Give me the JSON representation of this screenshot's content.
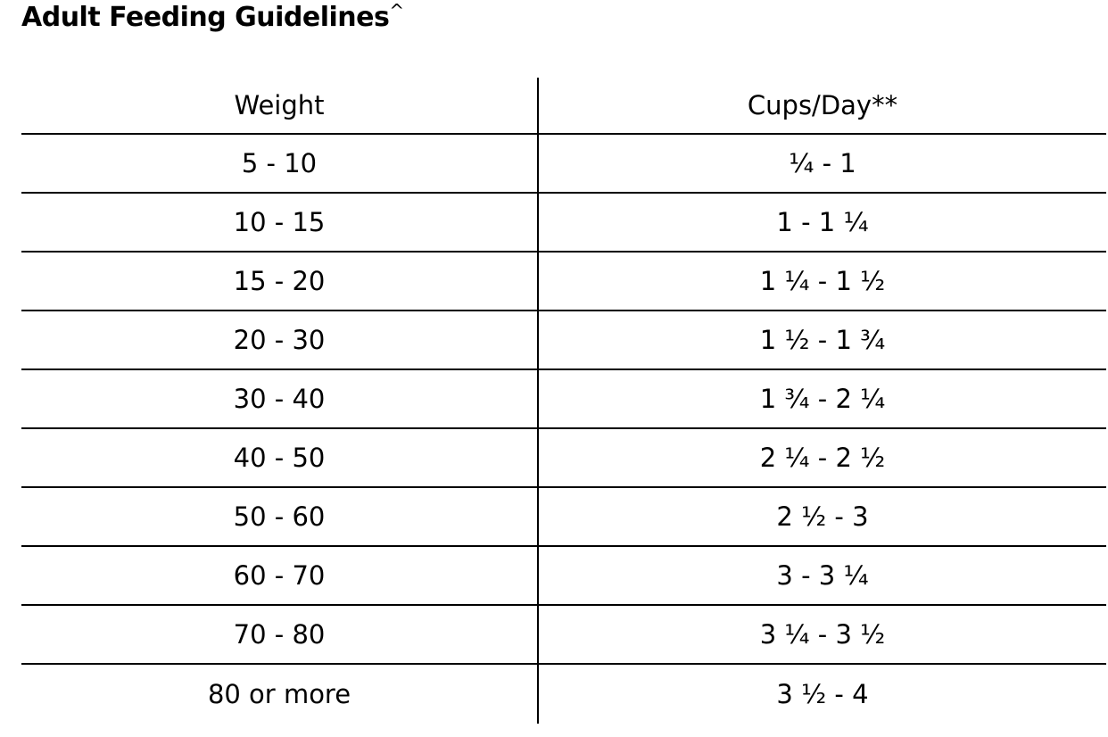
{
  "title": "Adult Feeding Guidelines",
  "title_suffix": "^",
  "table": {
    "headers": [
      "Weight",
      "Cups/Day**"
    ],
    "rows": [
      [
        "5 - 10",
        "¼ - 1"
      ],
      [
        "10 - 15",
        "1 - 1 ¼"
      ],
      [
        "15 - 20",
        "1 ¼ - 1 ½"
      ],
      [
        "20 - 30",
        "1 ½ - 1 ¾"
      ],
      [
        "30 - 40",
        "1 ¾ - 2 ¼"
      ],
      [
        "40 - 50",
        "2 ¼ - 2 ½"
      ],
      [
        "50 - 60",
        "2 ½ - 3"
      ],
      [
        "60 - 70",
        "3 - 3 ¼"
      ],
      [
        "70 - 80",
        "3 ¼ - 3 ½"
      ],
      [
        "80 or more",
        "3 ½ - 4"
      ]
    ]
  }
}
